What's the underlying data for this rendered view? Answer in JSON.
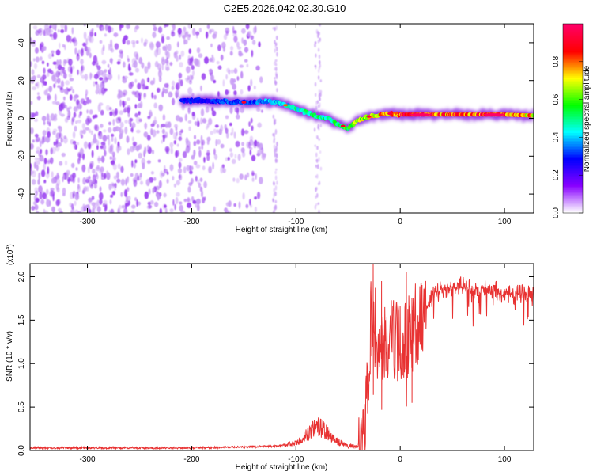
{
  "title": "C2E5.2026.042.02.30.G10",
  "chart_data": [
    {
      "type": "heatmap",
      "name": "spectrogram",
      "xlabel": "Height of straight line (km)",
      "ylabel": "Frequency (Hz)",
      "xlim": [
        -355,
        128
      ],
      "ylim": [
        -50,
        50
      ],
      "x_ticks": [
        -300,
        -200,
        -100,
        0,
        100
      ],
      "x_tick_labels": [
        "-300",
        "-200",
        "-100",
        "0",
        "100"
      ],
      "y_ticks": [
        -40,
        -20,
        0,
        20,
        40
      ],
      "y_tick_labels": [
        "-40",
        "-20",
        "0",
        "20",
        "40"
      ],
      "colorbar": {
        "label": "Normalized spectral amplitude",
        "range": [
          0,
          1
        ],
        "ticks": [
          0,
          0.2,
          0.4,
          0.6,
          0.8
        ],
        "tick_labels": [
          "0.0",
          "0.2",
          "0.4",
          "0.6",
          "0.8"
        ],
        "colormap": [
          "#ffffff",
          "#8800ff",
          "#0000ff",
          "#00ffff",
          "#00ff00",
          "#ffff00",
          "#ff0000",
          "#ff0066"
        ]
      },
      "noise_region": {
        "x_range": [
          -355,
          -130
        ],
        "note_colors": [
          "#9a40f0",
          "#c89cf5"
        ]
      },
      "ridge": {
        "x": [
          -210,
          -190,
          -170,
          -150,
          -130,
          -115,
          -100,
          -85,
          -70,
          -60,
          -50,
          -45,
          -40,
          -30,
          -20,
          -10,
          0,
          20,
          40,
          60,
          80,
          100,
          128
        ],
        "freq": [
          9,
          9.5,
          9,
          8.5,
          9,
          8,
          5,
          2,
          0,
          -3,
          -5,
          -3,
          -1,
          1,
          2,
          2.5,
          2,
          2,
          2,
          2,
          2,
          2,
          1.5
        ],
        "amplitude": [
          0.3,
          0.3,
          0.35,
          0.35,
          0.4,
          0.45,
          0.5,
          0.55,
          0.55,
          0.6,
          0.65,
          0.7,
          0.7,
          0.75,
          0.85,
          0.9,
          0.95,
          0.95,
          0.9,
          0.9,
          0.95,
          0.9,
          0.8
        ]
      }
    },
    {
      "type": "line",
      "name": "snr",
      "xlabel": "Height of straight line (km)",
      "ylabel": "SNR (10 * v/v)",
      "scale_label": "(x10",
      "scale_exp": "4",
      "scale_close": ")",
      "xlim": [
        -355,
        128
      ],
      "ylim": [
        0,
        2.15
      ],
      "x_ticks": [
        -300,
        -200,
        -100,
        0,
        100
      ],
      "x_tick_labels": [
        "-300",
        "-200",
        "-100",
        "0",
        "100"
      ],
      "y_ticks": [
        0,
        0.5,
        1.0,
        1.5,
        2.0
      ],
      "y_tick_labels": [
        "0.0",
        "0.5",
        "1.0",
        "1.5",
        "2.0"
      ],
      "series": [
        {
          "name": "SNR",
          "color": "#e83232",
          "x": [
            -355,
            -300,
            -250,
            -200,
            -150,
            -120,
            -100,
            -95,
            -90,
            -85,
            -80,
            -75,
            -70,
            -60,
            -50,
            -40,
            -35,
            -30,
            -28,
            -26,
            -24,
            -22,
            -20,
            -15,
            -10,
            -5,
            0,
            5,
            10,
            20,
            30,
            40,
            50,
            60,
            70,
            80,
            90,
            100,
            110,
            120,
            128
          ],
          "values": [
            0.03,
            0.03,
            0.03,
            0.03,
            0.04,
            0.05,
            0.08,
            0.12,
            0.18,
            0.22,
            0.3,
            0.25,
            0.2,
            0.1,
            0.05,
            0.05,
            0.15,
            0.9,
            1.5,
            1.6,
            1.4,
            1.2,
            1.15,
            1.2,
            1.25,
            1.3,
            1.2,
            1.25,
            1.35,
            1.55,
            1.75,
            1.85,
            1.9,
            1.88,
            1.85,
            1.85,
            1.85,
            1.8,
            1.8,
            1.8,
            1.8
          ],
          "spikes": [
            {
              "x": -26,
              "value": 2.15
            },
            {
              "x": -18,
              "value": 1.95
            },
            {
              "x": 6,
              "value": 2.05
            },
            {
              "x": 11,
              "value": 1.75
            }
          ]
        }
      ]
    }
  ]
}
